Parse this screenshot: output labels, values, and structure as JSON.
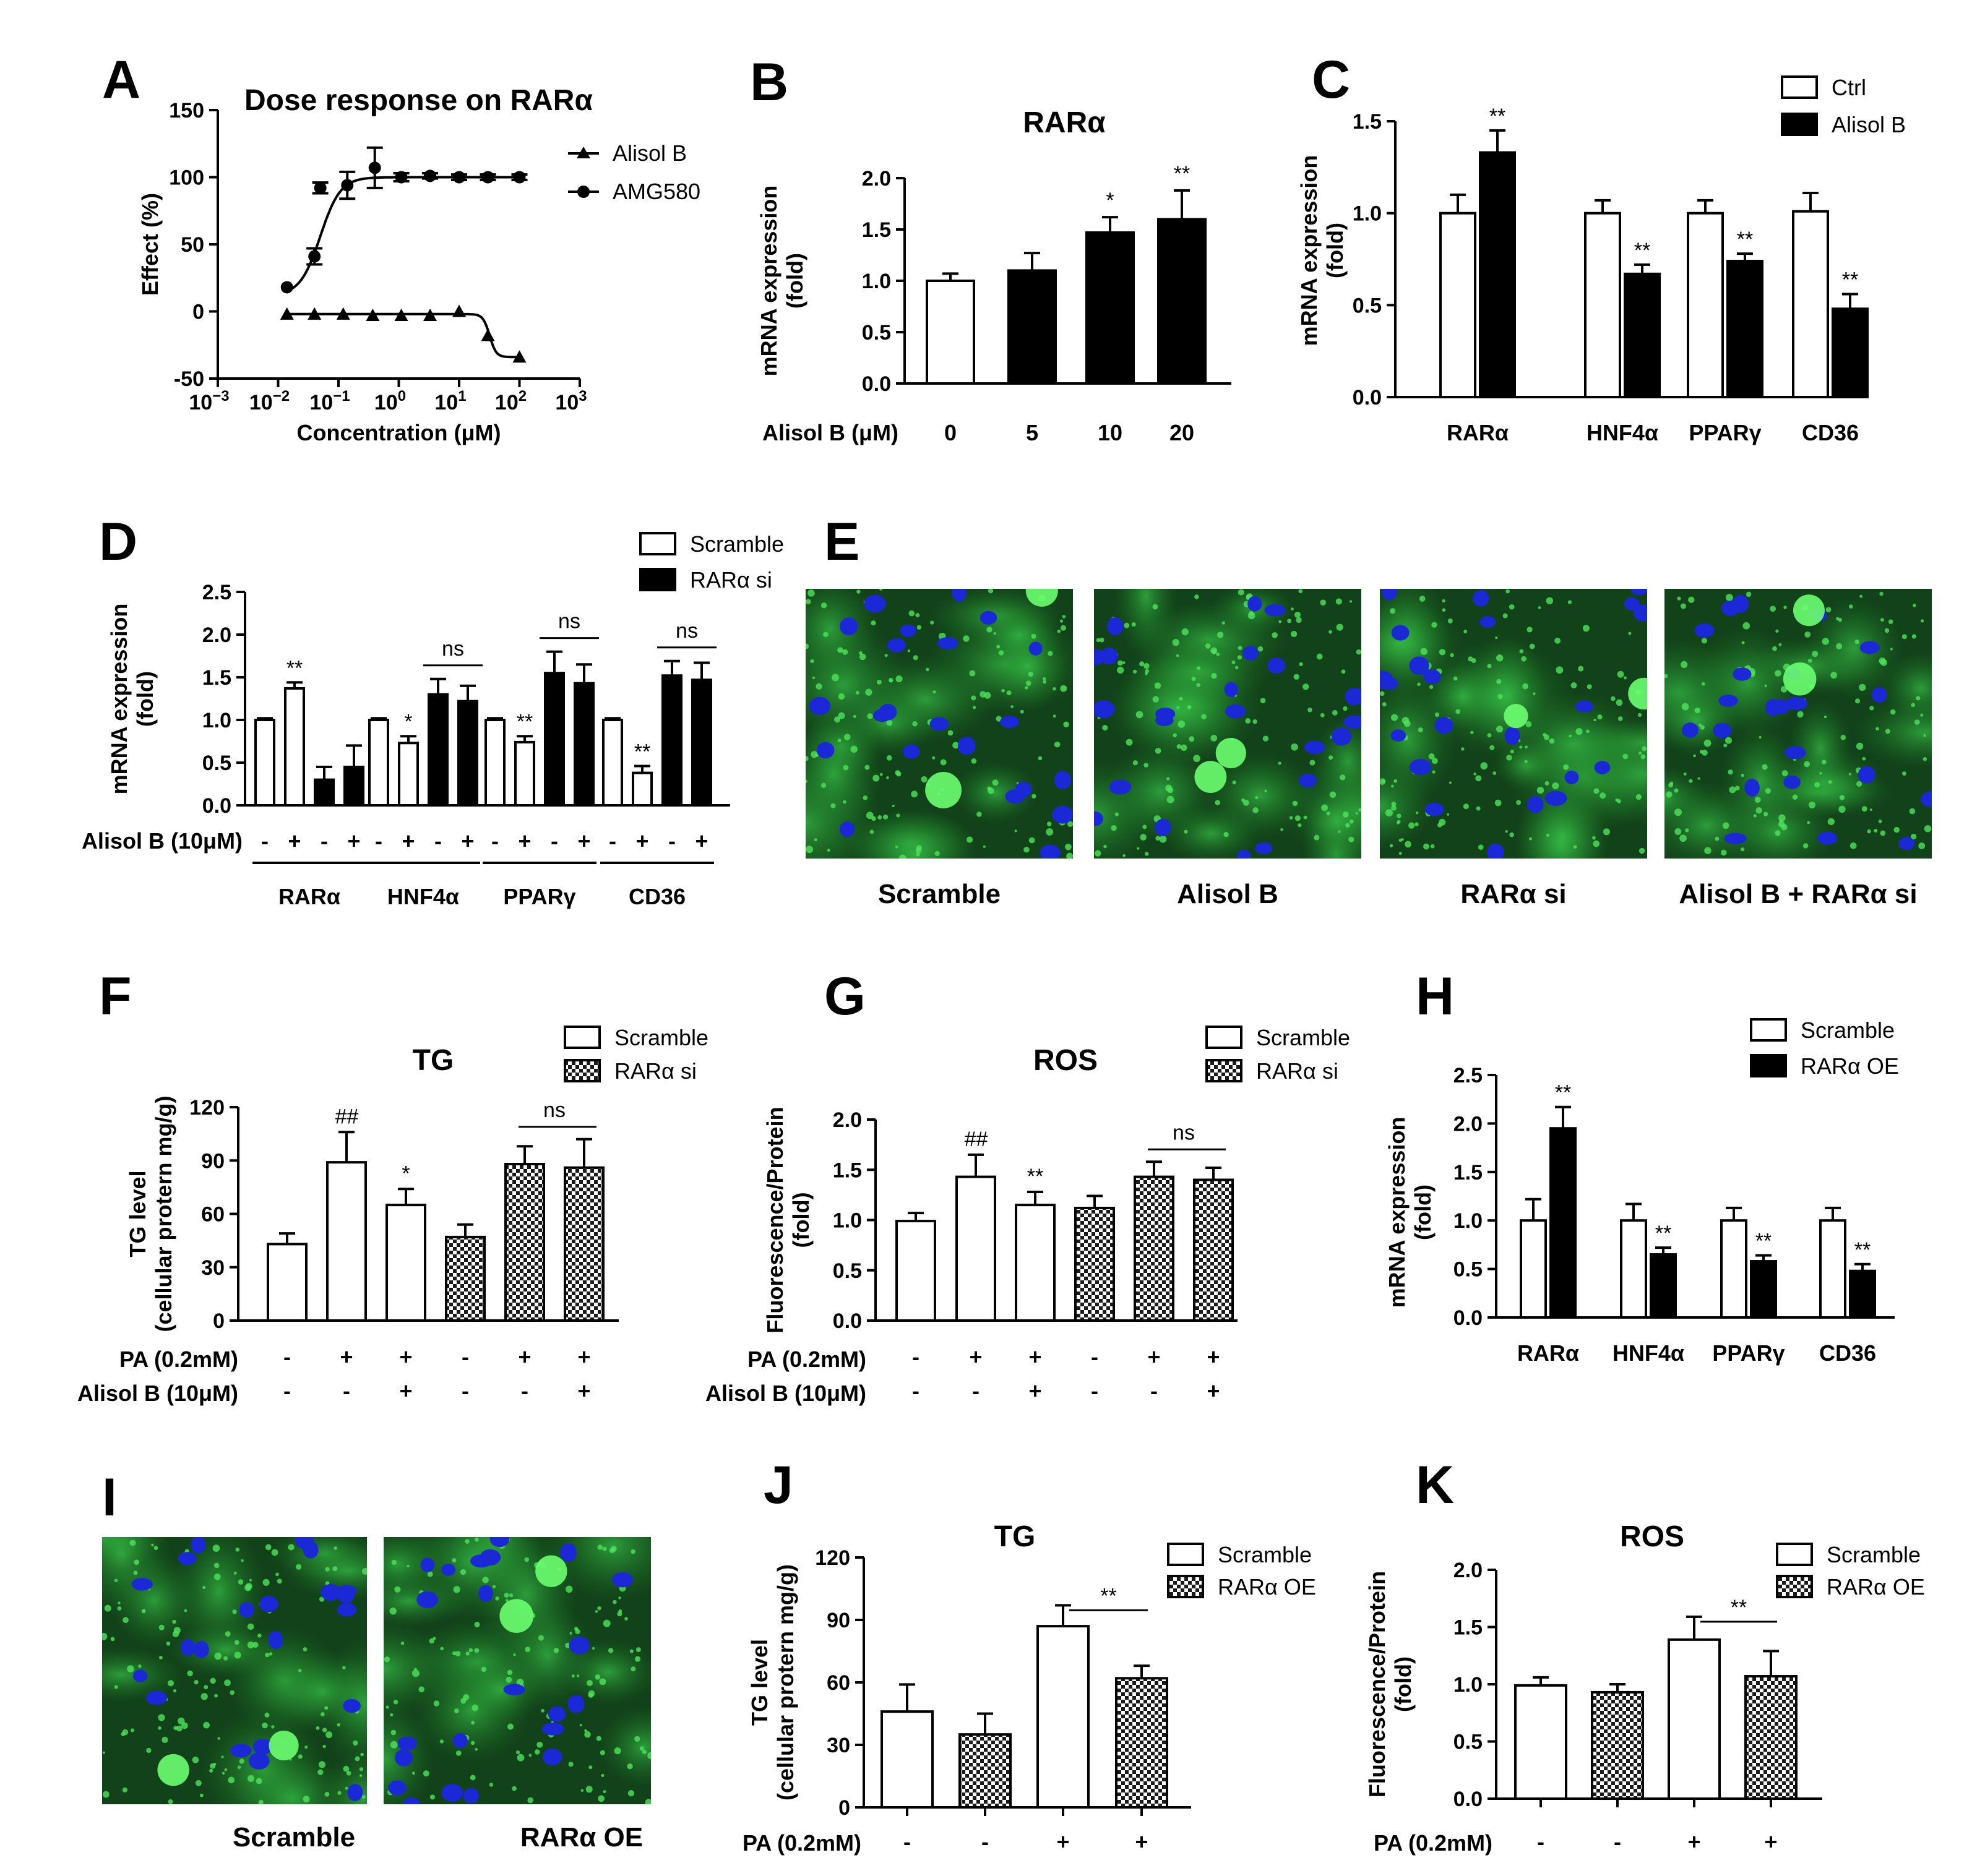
{
  "colors": {
    "black": "#000000",
    "white": "#ffffff",
    "cell_green": "#2e8f2e",
    "nucleus_blue": "#1a28d6"
  },
  "chart_data": [
    {
      "panel": "A",
      "type": "scatter",
      "title": "Dose response on RARα",
      "xlabel": "Concentration (μM)",
      "ylabel": "Effect (%)",
      "x_scale": "log",
      "xlim": [
        0.001,
        1000
      ],
      "ylim": [
        -50,
        150
      ],
      "x_ticks": [
        {
          "v": 0.001,
          "base": "10",
          "exp": "−3"
        },
        {
          "v": 0.01,
          "base": "10",
          "exp": "−2"
        },
        {
          "v": 0.1,
          "base": "10",
          "exp": "−1"
        },
        {
          "v": 1,
          "base": "10",
          "exp": "0"
        },
        {
          "v": 10,
          "base": "10",
          "exp": "1"
        },
        {
          "v": 100,
          "base": "10",
          "exp": "2"
        },
        {
          "v": 1000,
          "base": "10",
          "exp": "3"
        }
      ],
      "y_ticks": [
        "-50",
        "0",
        "50",
        "100",
        "150"
      ],
      "series": [
        {
          "name": "Alisol B",
          "marker": "triangle",
          "x": [
            0.014,
            0.04,
            0.12,
            0.37,
            1.1,
            3.3,
            10,
            30,
            100
          ],
          "y": [
            -2,
            -2,
            -2,
            -3,
            -3,
            -3,
            0,
            -18,
            -34
          ],
          "err": [
            0,
            0,
            0,
            0,
            0,
            0,
            0,
            0,
            0
          ]
        },
        {
          "name": "AMG580",
          "marker": "circle",
          "x": [
            0.014,
            0.04,
            0.05,
            0.14,
            0.4,
            1.1,
            3.3,
            10,
            30,
            100
          ],
          "y": [
            18,
            41,
            92,
            94,
            107,
            100,
            101,
            100,
            100,
            100
          ],
          "err": [
            0,
            6,
            4,
            10,
            15,
            3,
            2,
            2,
            2,
            2
          ]
        }
      ]
    },
    {
      "panel": "B",
      "type": "bar",
      "title": "RARα",
      "ylabel": "mRNA expression (fold)",
      "ylim": [
        0,
        2.0
      ],
      "y_ticks": [
        "0.0",
        "0.5",
        "1.0",
        "1.5",
        "2.0"
      ],
      "condition_label": "Alisol B (μM)",
      "categories": [
        "0",
        "5",
        "10",
        "20"
      ],
      "values": [
        1.0,
        1.1,
        1.47,
        1.6
      ],
      "err": [
        0.07,
        0.17,
        0.15,
        0.28
      ],
      "fills": [
        "white",
        "black",
        "black",
        "black"
      ],
      "sig": [
        "",
        "",
        "*",
        "**"
      ]
    },
    {
      "panel": "C",
      "type": "bar",
      "ylabel": "mRNA expression (fold)",
      "ylim": [
        0,
        1.5
      ],
      "y_ticks": [
        "0.0",
        "0.5",
        "1.0",
        "1.5"
      ],
      "categories": [
        "RARα",
        "HNF4α",
        "PPARγ",
        "CD36"
      ],
      "series": [
        {
          "name": "Ctrl",
          "values": [
            1.0,
            1.0,
            1.0,
            1.01
          ],
          "err": [
            0.1,
            0.07,
            0.07,
            0.1
          ],
          "sig": [
            "",
            "",
            "",
            ""
          ]
        },
        {
          "name": "Alisol B",
          "values": [
            1.33,
            0.67,
            0.74,
            0.48
          ],
          "err": [
            0.12,
            0.05,
            0.04,
            0.08
          ],
          "sig": [
            "**",
            "**",
            "**",
            "**"
          ]
        }
      ]
    },
    {
      "panel": "D",
      "type": "bar",
      "ylabel": "mRNA expression (fold)",
      "ylim": [
        0,
        2.5
      ],
      "y_ticks": [
        "0.0",
        "0.5",
        "1.0",
        "1.5",
        "2.0",
        "2.5"
      ],
      "condition_label": "Alisol B (10μM)",
      "legend": [
        "Scramble",
        "RARα si"
      ],
      "groups": [
        {
          "name": "RARα",
          "values": [
            1.0,
            1.37,
            0.3,
            0.45
          ],
          "err": [
            0.02,
            0.07,
            0.15,
            0.25
          ],
          "sig": [
            "",
            "**",
            "",
            ""
          ],
          "ns": ""
        },
        {
          "name": "HNF4α",
          "values": [
            1.0,
            0.73,
            1.3,
            1.22
          ],
          "err": [
            0.02,
            0.08,
            0.18,
            0.18
          ],
          "sig": [
            "",
            "*",
            "",
            ""
          ],
          "ns": "ns"
        },
        {
          "name": "PPARγ",
          "values": [
            1.0,
            0.74,
            1.55,
            1.43
          ],
          "err": [
            0.02,
            0.07,
            0.25,
            0.22
          ],
          "sig": [
            "",
            "**",
            "",
            ""
          ],
          "ns": "ns"
        },
        {
          "name": "CD36",
          "values": [
            1.0,
            0.38,
            1.52,
            1.47
          ],
          "err": [
            0.02,
            0.08,
            0.17,
            0.2
          ],
          "sig": [
            "",
            "**",
            "",
            ""
          ],
          "ns": "ns"
        }
      ],
      "treatment": [
        "-",
        "+",
        "-",
        "+"
      ]
    },
    {
      "panel": "F",
      "type": "bar",
      "title": "TG",
      "ylabel": "TG level (cellular protern mg/g)",
      "ylim": [
        0,
        120
      ],
      "y_ticks": [
        "0",
        "30",
        "60",
        "90",
        "120"
      ],
      "legend": [
        "Scramble",
        "RARα si"
      ],
      "values": [
        43,
        89,
        65,
        47,
        88,
        86
      ],
      "err": [
        6,
        17,
        9,
        7,
        10,
        16
      ],
      "fills": [
        "white",
        "white",
        "white",
        "hatch",
        "hatch",
        "hatch"
      ],
      "sig": [
        "",
        "##",
        "*",
        "",
        "",
        ""
      ],
      "ns": "ns",
      "rows": [
        {
          "label": "PA (0.2mM)",
          "values": [
            "-",
            "+",
            "+",
            "-",
            "+",
            "+"
          ]
        },
        {
          "label": "Alisol B (10μM)",
          "values": [
            "-",
            "-",
            "+",
            "-",
            "-",
            "+"
          ]
        }
      ]
    },
    {
      "panel": "G",
      "type": "bar",
      "title": "ROS",
      "ylabel": "Fluorescence/Protein (fold)",
      "ylim": [
        0,
        2.0
      ],
      "y_ticks": [
        "0.0",
        "0.5",
        "1.0",
        "1.5",
        "2.0"
      ],
      "legend": [
        "Scramble",
        "RARα si"
      ],
      "values": [
        0.99,
        1.43,
        1.15,
        1.12,
        1.43,
        1.4
      ],
      "err": [
        0.08,
        0.22,
        0.13,
        0.12,
        0.15,
        0.12
      ],
      "fills": [
        "white",
        "white",
        "white",
        "hatch",
        "hatch",
        "hatch"
      ],
      "sig": [
        "",
        "##",
        "**",
        "",
        "",
        ""
      ],
      "ns": "ns",
      "rows": [
        {
          "label": "PA (0.2mM)",
          "values": [
            "-",
            "+",
            "+",
            "-",
            "+",
            "+"
          ]
        },
        {
          "label": "Alisol B (10μM)",
          "values": [
            "-",
            "-",
            "+",
            "-",
            "-",
            "+"
          ]
        }
      ]
    },
    {
      "panel": "H",
      "type": "bar",
      "ylabel": "mRNA expression (fold)",
      "ylim": [
        0,
        2.5
      ],
      "y_ticks": [
        "0.0",
        "0.5",
        "1.0",
        "1.5",
        "2.0",
        "2.5"
      ],
      "categories": [
        "RARα",
        "HNF4α",
        "PPARγ",
        "CD36"
      ],
      "series": [
        {
          "name": "Scramble",
          "values": [
            1.0,
            1.0,
            1.0,
            1.0
          ],
          "err": [
            0.22,
            0.17,
            0.13,
            0.13
          ],
          "sig": [
            "",
            "",
            "",
            ""
          ]
        },
        {
          "name": "RARα OE",
          "values": [
            1.95,
            0.65,
            0.58,
            0.48
          ],
          "err": [
            0.22,
            0.07,
            0.06,
            0.07
          ],
          "sig": [
            "**",
            "**",
            "**",
            "**"
          ]
        }
      ]
    },
    {
      "panel": "J",
      "type": "bar",
      "title": "TG",
      "ylabel": "TG level (cellular protern mg/g)",
      "ylim": [
        0,
        120
      ],
      "y_ticks": [
        "0",
        "30",
        "60",
        "90",
        "120"
      ],
      "legend": [
        "Scramble",
        "RARα OE"
      ],
      "values": [
        46,
        35,
        87,
        62
      ],
      "err": [
        13,
        10,
        10,
        6
      ],
      "fills": [
        "white",
        "hatch",
        "white",
        "hatch"
      ],
      "sig_bracket": "**",
      "rows": [
        {
          "label": "PA (0.2mM)",
          "values": [
            "-",
            "-",
            "+",
            "+"
          ]
        }
      ]
    },
    {
      "panel": "K",
      "type": "bar",
      "title": "ROS",
      "ylabel": "Fluorescence/Protein (fold)",
      "ylim": [
        0,
        2.0
      ],
      "y_ticks": [
        "0.0",
        "0.5",
        "1.0",
        "1.5",
        "2.0"
      ],
      "legend": [
        "Scramble",
        "RARα OE"
      ],
      "values": [
        0.99,
        0.93,
        1.39,
        1.07
      ],
      "err": [
        0.07,
        0.07,
        0.2,
        0.22
      ],
      "fills": [
        "white",
        "hatch",
        "white",
        "hatch"
      ],
      "sig_bracket": "**",
      "rows": [
        {
          "label": "PA (0.2mM)",
          "values": [
            "-",
            "-",
            "+",
            "+"
          ]
        }
      ]
    }
  ],
  "panel_E": {
    "letter": "E",
    "captions": [
      "Scramble",
      "Alisol B",
      "RARα si",
      "Alisol B + RARα si"
    ]
  },
  "panel_I": {
    "letter": "I",
    "captions": [
      "Scramble",
      "RARα OE"
    ]
  }
}
